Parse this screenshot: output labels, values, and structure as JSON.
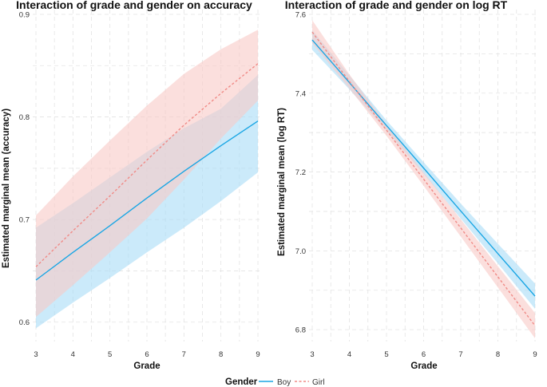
{
  "chart_data": [
    {
      "type": "line",
      "title": "Interaction of grade and gender on accuracy",
      "xlabel": "Grade",
      "ylabel": "Estimated marginal mean (accuracy)",
      "xlim": [
        3,
        9
      ],
      "ylim": [
        0.585,
        0.9
      ],
      "x_ticks": [
        3,
        4,
        5,
        6,
        7,
        8,
        9
      ],
      "y_ticks": [
        0.6,
        0.7,
        0.8,
        0.9
      ],
      "y_tick_labels": [
        "0.6",
        "0.7",
        "0.8",
        "0.9"
      ],
      "grid": true,
      "x": [
        3,
        4,
        5,
        6,
        7,
        8,
        9
      ],
      "series": [
        {
          "name": "Boy",
          "color": "#1aa6e4",
          "fill": "#a9dcf6",
          "dash": "solid",
          "values": [
            0.641,
            0.668,
            0.694,
            0.721,
            0.747,
            0.772,
            0.796
          ],
          "lower": [
            0.594,
            0.619,
            0.643,
            0.668,
            0.692,
            0.718,
            0.746
          ],
          "upper": [
            0.692,
            0.716,
            0.741,
            0.766,
            0.789,
            0.808,
            0.841
          ]
        },
        {
          "name": "Girl",
          "color": "#f08a86",
          "fill": "#f9c9c6",
          "dash": "dashed",
          "values": [
            0.654,
            0.689,
            0.723,
            0.758,
            0.792,
            0.823,
            0.852
          ],
          "lower": [
            0.605,
            0.636,
            0.668,
            0.701,
            0.739,
            0.779,
            0.816
          ],
          "upper": [
            0.704,
            0.742,
            0.777,
            0.811,
            0.842,
            0.866,
            0.885
          ]
        }
      ]
    },
    {
      "type": "line",
      "title": "Interaction of grade and gender on log RT",
      "xlabel": "Grade",
      "ylabel": "Estimated marginal mean (log RT)",
      "xlim": [
        3,
        9
      ],
      "ylim": [
        6.78,
        7.6
      ],
      "x_ticks": [
        3,
        4,
        5,
        6,
        7,
        8,
        9
      ],
      "y_ticks": [
        6.8,
        7.0,
        7.2,
        7.4,
        7.6
      ],
      "y_tick_labels": [
        "6.8",
        "7.0",
        "7.2",
        "7.4",
        "7.6"
      ],
      "grid": true,
      "x": [
        3,
        4,
        5,
        6,
        7,
        8,
        9
      ],
      "series": [
        {
          "name": "Boy",
          "color": "#1aa6e4",
          "fill": "#a9dcf6",
          "dash": "solid",
          "values": [
            7.535,
            7.427,
            7.318,
            7.21,
            7.101,
            6.993,
            6.885
          ],
          "lower": [
            7.51,
            7.41,
            7.305,
            7.195,
            7.082,
            6.968,
            6.853
          ],
          "upper": [
            7.56,
            7.445,
            7.331,
            7.225,
            7.12,
            7.018,
            6.917
          ]
        },
        {
          "name": "Girl",
          "color": "#f08a86",
          "fill": "#f9c9c6",
          "dash": "dashed",
          "values": [
            7.555,
            7.43,
            7.306,
            7.182,
            7.058,
            6.934,
            6.81
          ],
          "lower": [
            7.527,
            7.412,
            7.292,
            7.165,
            7.036,
            6.907,
            6.778
          ],
          "upper": [
            7.585,
            7.448,
            7.32,
            7.199,
            7.08,
            6.961,
            6.842
          ]
        }
      ]
    }
  ],
  "legend": {
    "title": "Gender",
    "items": [
      {
        "label": "Boy",
        "color": "#1aa6e4",
        "dash": "solid"
      },
      {
        "label": "Girl",
        "color": "#f08a86",
        "dash": "dashed"
      }
    ]
  }
}
